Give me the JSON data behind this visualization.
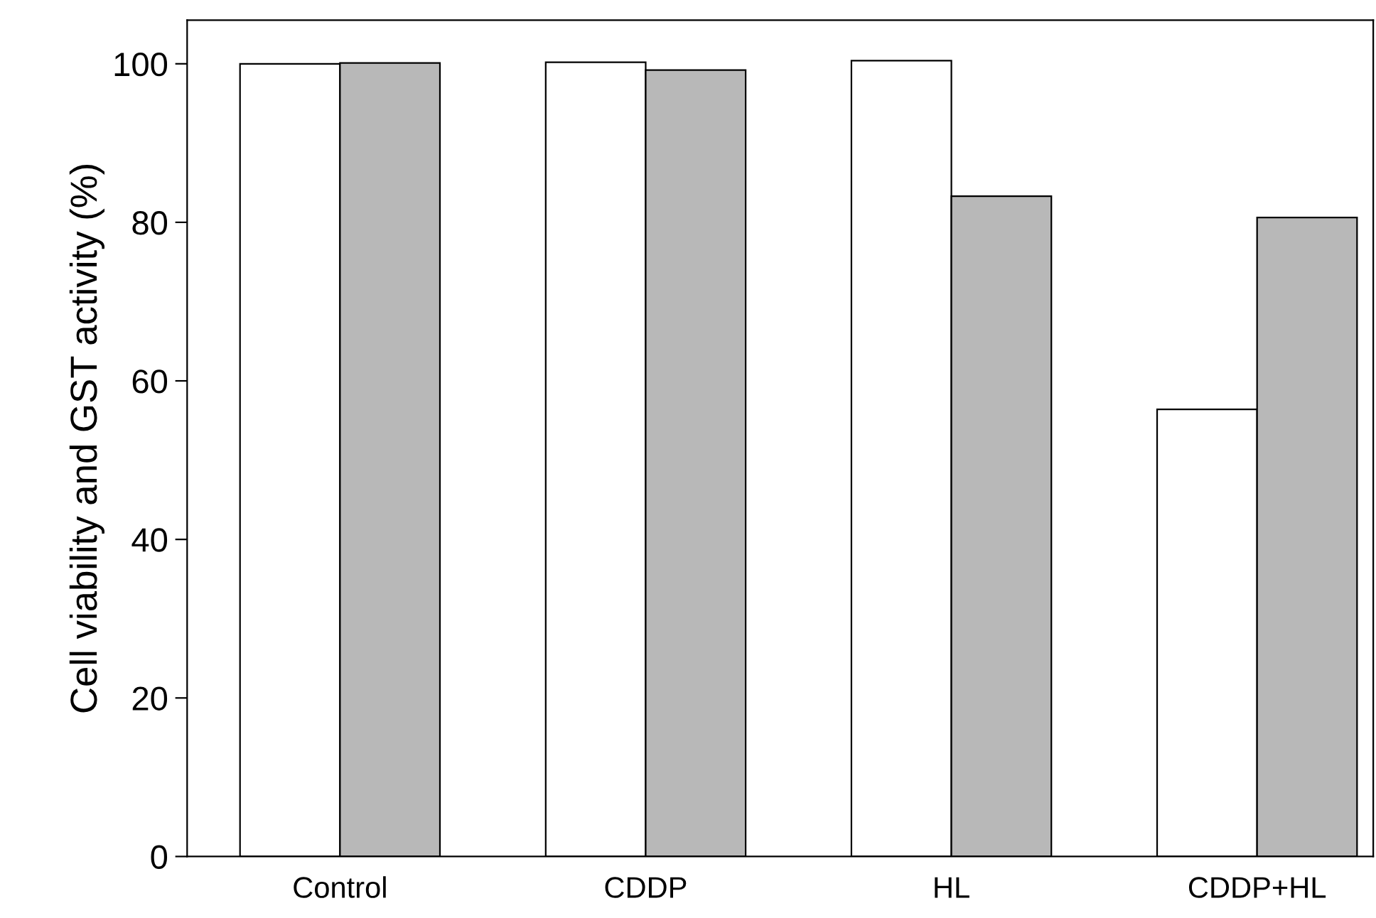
{
  "chart_data": {
    "type": "bar",
    "ylabel": "Cell viability and GST activity (%)",
    "categories": [
      "Control",
      "CDDP",
      "HL",
      "CDDP+HL"
    ],
    "series": [
      {
        "color": "#ffffff",
        "values": [
          100,
          100.2,
          100.4,
          56.4
        ]
      },
      {
        "color": "#b8b8b8",
        "values": [
          100.1,
          99.2,
          83.3,
          80.6
        ]
      }
    ],
    "ylim": [
      0,
      105.5
    ],
    "yticks": [
      0,
      20,
      40,
      60,
      80,
      100
    ],
    "grid": false
  }
}
